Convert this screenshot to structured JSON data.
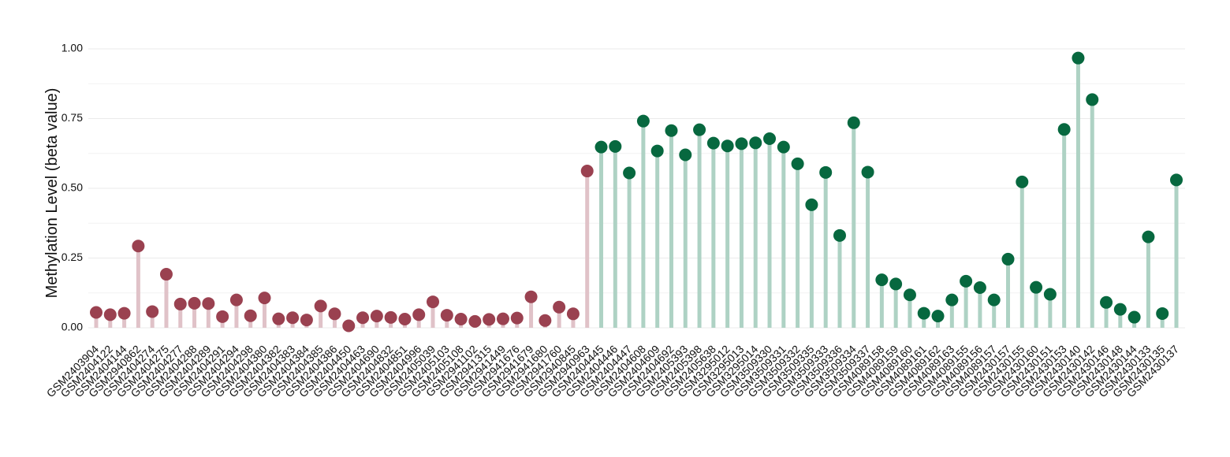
{
  "chart_data": {
    "type": "lollipop",
    "y_label": "Methylation Level (beta value)",
    "categories": [
      "GSM2403904",
      "GSM2404122",
      "GSM2404144",
      "GSM2940862",
      "GSM2404274",
      "GSM2404275",
      "GSM2404277",
      "GSM2404288",
      "GSM2404289",
      "GSM2404291",
      "GSM2404294",
      "GSM2404298",
      "GSM2404380",
      "GSM2404382",
      "GSM2404383",
      "GSM2404384",
      "GSM2404385",
      "GSM2404386",
      "GSM2404450",
      "GSM2404463",
      "GSM2404690",
      "GSM2404832",
      "GSM2404851",
      "GSM2404996",
      "GSM2405039",
      "GSM2405103",
      "GSM2405108",
      "GSM2941102",
      "GSM2941315",
      "GSM2941449",
      "GSM2941676",
      "GSM2941679",
      "GSM2941680",
      "GSM2941760",
      "GSM2940845",
      "GSM2940963",
      "GSM2404445",
      "GSM2404446",
      "GSM2404447",
      "GSM2404608",
      "GSM2404609",
      "GSM2404692",
      "GSM2405393",
      "GSM2405398",
      "GSM2405638",
      "GSM3295012",
      "GSM3295013",
      "GSM3295014",
      "GSM3509330",
      "GSM3509331",
      "GSM3509332",
      "GSM3509335",
      "GSM3509333",
      "GSM3509336",
      "GSM3509334",
      "GSM3509337",
      "GSM4089158",
      "GSM4089159",
      "GSM4089160",
      "GSM4089161",
      "GSM4089162",
      "GSM4089163",
      "GSM4089155",
      "GSM4089156",
      "GSM4089157",
      "GSM2430157",
      "GSM2430155",
      "GSM2430160",
      "GSM2430151",
      "GSM2430153",
      "GSM2430140",
      "GSM2430142",
      "GSM2430146",
      "GSM2430148",
      "GSM2430144",
      "GSM2430133",
      "GSM2430135",
      "GSM2430137"
    ],
    "series": [
      {
        "color": "#9a4150",
        "stem_color": "#e0c2c8",
        "values": [
          0.055,
          0.047,
          0.052,
          0.293,
          0.058,
          0.192,
          0.085,
          0.088,
          0.087,
          0.04,
          0.1,
          0.043,
          0.107,
          0.032,
          0.036,
          0.028,
          0.078,
          0.05,
          0.007,
          0.036,
          0.042,
          0.037,
          0.031,
          0.047,
          0.093,
          0.045,
          0.031,
          0.023,
          0.03,
          0.032,
          0.035,
          0.111,
          0.026,
          0.074,
          0.05,
          0.562,
          null,
          null,
          null,
          null,
          null,
          null,
          null,
          null,
          null,
          null,
          null,
          null,
          null,
          null,
          null,
          null,
          null,
          null,
          null,
          null,
          null,
          null,
          null,
          null,
          null,
          null,
          null,
          null,
          null,
          null,
          null,
          null,
          null,
          null,
          null,
          null,
          null,
          null,
          null,
          null,
          null,
          null
        ]
      },
      {
        "color": "#07683f",
        "stem_color": "#aed2c4",
        "values": [
          null,
          null,
          null,
          null,
          null,
          null,
          null,
          null,
          null,
          null,
          null,
          null,
          null,
          null,
          null,
          null,
          null,
          null,
          null,
          null,
          null,
          null,
          null,
          null,
          null,
          null,
          null,
          null,
          null,
          null,
          null,
          null,
          null,
          null,
          null,
          null,
          0.648,
          0.65,
          0.555,
          0.741,
          0.634,
          0.707,
          0.62,
          0.71,
          0.662,
          0.652,
          0.66,
          0.663,
          0.678,
          0.648,
          0.588,
          0.441,
          0.557,
          0.331,
          0.735,
          0.558,
          0.172,
          0.157,
          0.118,
          0.052,
          0.042,
          0.1,
          0.167,
          0.144,
          0.1,
          0.246,
          0.523,
          0.145,
          0.12,
          0.711,
          0.967,
          0.818,
          0.091,
          0.066,
          0.038,
          0.326,
          0.051,
          0.53
        ]
      }
    ],
    "ylim": [
      0,
      1
    ],
    "yticks": [
      {
        "value": 0,
        "label": "0.00"
      },
      {
        "value": 0.25,
        "label": "0.25"
      },
      {
        "value": 0.5,
        "label": "0.50"
      },
      {
        "value": 0.75,
        "label": "0.75"
      },
      {
        "value": 1,
        "label": "1.00"
      }
    ],
    "grid": true
  }
}
